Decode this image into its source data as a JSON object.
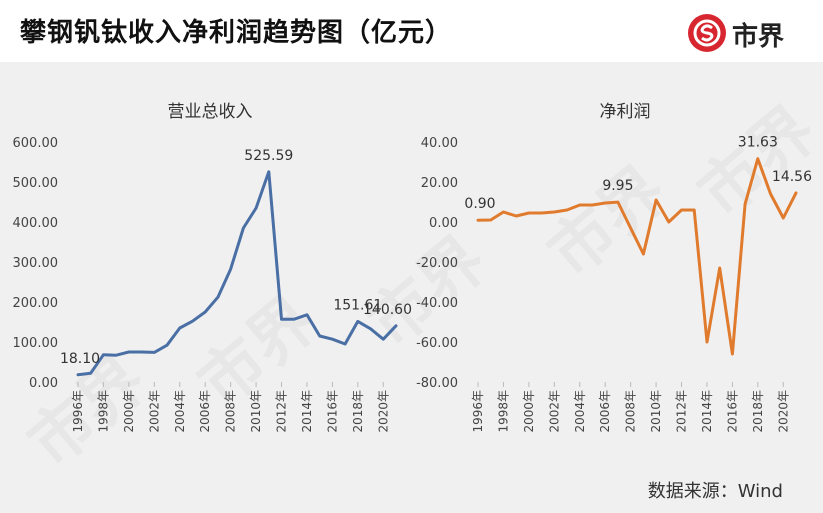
{
  "header": {
    "title": "攀钢钒钛收入净利润趋势图（亿元）",
    "logo_text": "市界",
    "logo_icon": "logo-s-icon"
  },
  "source": "数据来源：Wind",
  "watermark_text": "市界",
  "colors": {
    "revenue": "#4a6fa5",
    "profit": "#e07b2e",
    "logo": "#d7262f",
    "panel": "#f0f0f0"
  },
  "chart_data": [
    {
      "type": "line",
      "title": "营业总收入",
      "x": [
        1996,
        1997,
        1998,
        1999,
        2000,
        2001,
        2002,
        2003,
        2004,
        2005,
        2006,
        2007,
        2008,
        2009,
        2010,
        2011,
        2012,
        2013,
        2014,
        2015,
        2016,
        2017,
        2018,
        2019,
        2020,
        2021
      ],
      "x_tick_labels": [
        "1996年",
        "1998年",
        "2000年",
        "2002年",
        "2004年",
        "2006年",
        "2008年",
        "2010年",
        "2012年",
        "2014年",
        "2016年",
        "2018年",
        "2020年"
      ],
      "y_ticks": [
        "0.00",
        "100.00",
        "200.00",
        "300.00",
        "400.00",
        "500.00",
        "600.00"
      ],
      "ylim": [
        0,
        600
      ],
      "series": [
        {
          "values": [
            18.1,
            22,
            68,
            67,
            75,
            75,
            74,
            92,
            135,
            152,
            175,
            212,
            282,
            385,
            435,
            525.59,
            157,
            157,
            168,
            115,
            107,
            95,
            151.61,
            133,
            107,
            140.6
          ]
        }
      ],
      "annotations": [
        {
          "index": 0,
          "text": "18.10"
        },
        {
          "index": 15,
          "text": "525.59"
        },
        {
          "index": 22,
          "text": "151.61"
        },
        {
          "index": 25,
          "text": "140.60"
        }
      ]
    },
    {
      "type": "line",
      "title": "净利润",
      "x": [
        1996,
        1997,
        1998,
        1999,
        2000,
        2001,
        2002,
        2003,
        2004,
        2005,
        2006,
        2007,
        2008,
        2009,
        2010,
        2011,
        2012,
        2013,
        2014,
        2015,
        2016,
        2017,
        2018,
        2019,
        2020,
        2021
      ],
      "x_tick_labels": [
        "1996年",
        "1998年",
        "2000年",
        "2002年",
        "2004年",
        "2006年",
        "2008年",
        "2010年",
        "2012年",
        "2014年",
        "2016年",
        "2018年",
        "2020年"
      ],
      "y_ticks": [
        "-80.00",
        "-60.00",
        "-40.00",
        "-20.00",
        "0.00",
        "20.00",
        "40.00"
      ],
      "ylim": [
        -80,
        40
      ],
      "series": [
        {
          "values": [
            0.9,
            1,
            5,
            3,
            4.5,
            4.5,
            5,
            6,
            8.5,
            8.5,
            9.5,
            9.95,
            -3,
            -16,
            11,
            0,
            6,
            6,
            -60,
            -23,
            -66,
            9,
            31.63,
            14,
            2,
            14.56
          ]
        }
      ],
      "annotations": [
        {
          "index": 0,
          "text": "0.90"
        },
        {
          "index": 11,
          "text": "9.95"
        },
        {
          "index": 22,
          "text": "31.63"
        },
        {
          "index": 25,
          "text": "14.56"
        }
      ]
    }
  ]
}
